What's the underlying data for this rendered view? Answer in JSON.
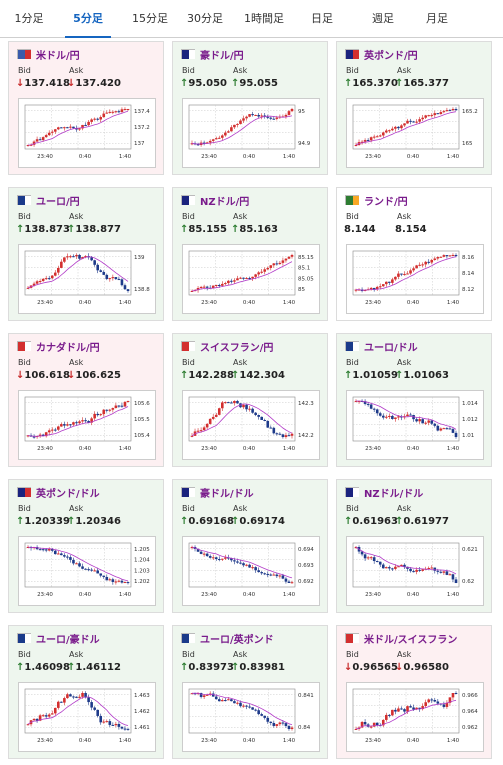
{
  "tabs": [
    {
      "label": "1分足",
      "active": false
    },
    {
      "label": "5分足",
      "active": true
    },
    {
      "label": "15分足",
      "active": false
    },
    {
      "label": "30分足",
      "active": false
    },
    {
      "label": "1時間足",
      "active": false
    },
    {
      "label": "日足",
      "active": false
    },
    {
      "label": "週足",
      "active": false
    },
    {
      "label": "月足",
      "active": false
    }
  ],
  "colors": {
    "up": "#2e7d32",
    "down": "#c62828",
    "candle_up": "#d32f2f",
    "candle_down": "#1e3a8a",
    "ma": "#b23cc8",
    "title": "#7a1c8c",
    "accent": "#1565c0"
  },
  "labels": {
    "bid": "Bid",
    "ask": "Ask"
  },
  "pairs": [
    {
      "name": "米ドル/円",
      "flag": [
        "#3b5bab",
        "#d32f2f"
      ],
      "direction": "down",
      "bid": "137.418",
      "ask": "137.420",
      "yticks": [
        "137.4",
        "137.2",
        "137"
      ],
      "xticks": [
        "23:40",
        "0:40",
        "1:40"
      ],
      "trend": "up",
      "seed": 1
    },
    {
      "name": "豪ドル/円",
      "flag": [
        "#1a237e",
        "#ffffff"
      ],
      "direction": "up",
      "bid": "95.050",
      "ask": "95.055",
      "yticks": [
        "95",
        "94.9"
      ],
      "xticks": [
        "23:40",
        "0:40",
        "1:40"
      ],
      "trend": "up",
      "seed": 2
    },
    {
      "name": "英ポンド/円",
      "flag": [
        "#1a237e",
        "#d32f2f"
      ],
      "direction": "up",
      "bid": "165.370",
      "ask": "165.377",
      "yticks": [
        "165.2",
        "165"
      ],
      "xticks": [
        "23:40",
        "0:40",
        "1:40"
      ],
      "trend": "up",
      "seed": 3
    },
    {
      "name": "ユーロ/円",
      "flag": [
        "#1a3a8a",
        "#ffffff"
      ],
      "direction": "up",
      "bid": "138.873",
      "ask": "138.877",
      "yticks": [
        "139",
        "138.8"
      ],
      "xticks": [
        "23:40",
        "0:40",
        "1:40"
      ],
      "trend": "wave",
      "seed": 4
    },
    {
      "name": "NZドル/円",
      "flag": [
        "#1a237e",
        "#ffffff"
      ],
      "direction": "up",
      "bid": "85.155",
      "ask": "85.163",
      "yticks": [
        "85.15",
        "85.1",
        "85.05",
        "85"
      ],
      "xticks": [
        "23:40",
        "0:40",
        "1:40"
      ],
      "trend": "up",
      "seed": 5
    },
    {
      "name": "ランド/円",
      "flag": [
        "#2e7d32",
        "#f9a825"
      ],
      "direction": "none",
      "bid": "8.144",
      "ask": "8.154",
      "yticks": [
        "8.16",
        "8.14",
        "8.12"
      ],
      "xticks": [
        "23:40",
        "0:40",
        "1:40"
      ],
      "trend": "up",
      "seed": 6
    },
    {
      "name": "カナダドル/円",
      "flag": [
        "#d32f2f",
        "#ffffff"
      ],
      "direction": "down",
      "bid": "106.618",
      "ask": "106.625",
      "yticks": [
        "105.6",
        "105.5",
        "105.4"
      ],
      "xticks": [
        "23:40",
        "0:40",
        "1:40"
      ],
      "trend": "up",
      "seed": 7
    },
    {
      "name": "スイスフラン/円",
      "flag": [
        "#d32f2f",
        "#ffffff"
      ],
      "direction": "up",
      "bid": "142.288",
      "ask": "142.304",
      "yticks": [
        "142.3",
        "142.2"
      ],
      "xticks": [
        "23:40",
        "0:40",
        "1:40"
      ],
      "trend": "wave",
      "seed": 8
    },
    {
      "name": "ユーロ/ドル",
      "flag": [
        "#1a3a8a",
        "#ffffff"
      ],
      "direction": "up",
      "bid": "1.01059",
      "ask": "1.01063",
      "yticks": [
        "1.014",
        "1.012",
        "1.01"
      ],
      "xticks": [
        "23:40",
        "0:40",
        "1:40"
      ],
      "trend": "down",
      "seed": 9
    },
    {
      "name": "英ポンド/ドル",
      "flag": [
        "#1a237e",
        "#d32f2f"
      ],
      "direction": "up",
      "bid": "1.20339",
      "ask": "1.20346",
      "yticks": [
        "1.205",
        "1.204",
        "1.203",
        "1.202"
      ],
      "xticks": [
        "23:40",
        "0:40",
        "1:40"
      ],
      "trend": "down",
      "seed": 10
    },
    {
      "name": "豪ドル/ドル",
      "flag": [
        "#1a237e",
        "#ffffff"
      ],
      "direction": "up",
      "bid": "0.69168",
      "ask": "0.69174",
      "yticks": [
        "0.694",
        "0.693",
        "0.692"
      ],
      "xticks": [
        "23:40",
        "0:40",
        "1:40"
      ],
      "trend": "down",
      "seed": 11
    },
    {
      "name": "NZドル/ドル",
      "flag": [
        "#1a237e",
        "#ffffff"
      ],
      "direction": "up",
      "bid": "0.61963",
      "ask": "0.61977",
      "yticks": [
        "0.621",
        "0.62"
      ],
      "xticks": [
        "23:40",
        "0:40",
        "1:40"
      ],
      "trend": "down",
      "seed": 12
    },
    {
      "name": "ユーロ/豪ドル",
      "flag": [
        "#1a3a8a",
        "#ffffff"
      ],
      "direction": "up",
      "bid": "1.46098",
      "ask": "1.46112",
      "yticks": [
        "1.463",
        "1.462",
        "1.461"
      ],
      "xticks": [
        "23:40",
        "0:40",
        "1:40"
      ],
      "trend": "wave",
      "seed": 13
    },
    {
      "name": "ユーロ/英ポンド",
      "flag": [
        "#1a3a8a",
        "#ffffff"
      ],
      "direction": "up",
      "bid": "0.83973",
      "ask": "0.83981",
      "yticks": [
        "0.841",
        "0.84"
      ],
      "xticks": [
        "23:40",
        "0:40",
        "1:40"
      ],
      "trend": "down",
      "seed": 14
    },
    {
      "name": "米ドル/スイスフラン",
      "flag": [
        "#d32f2f",
        "#ffffff"
      ],
      "direction": "down",
      "bid": "0.96565",
      "ask": "0.96580",
      "yticks": [
        "0.966",
        "0.964",
        "0.962"
      ],
      "xticks": [
        "23:40",
        "0:40",
        "1:40"
      ],
      "trend": "up",
      "seed": 15
    }
  ]
}
